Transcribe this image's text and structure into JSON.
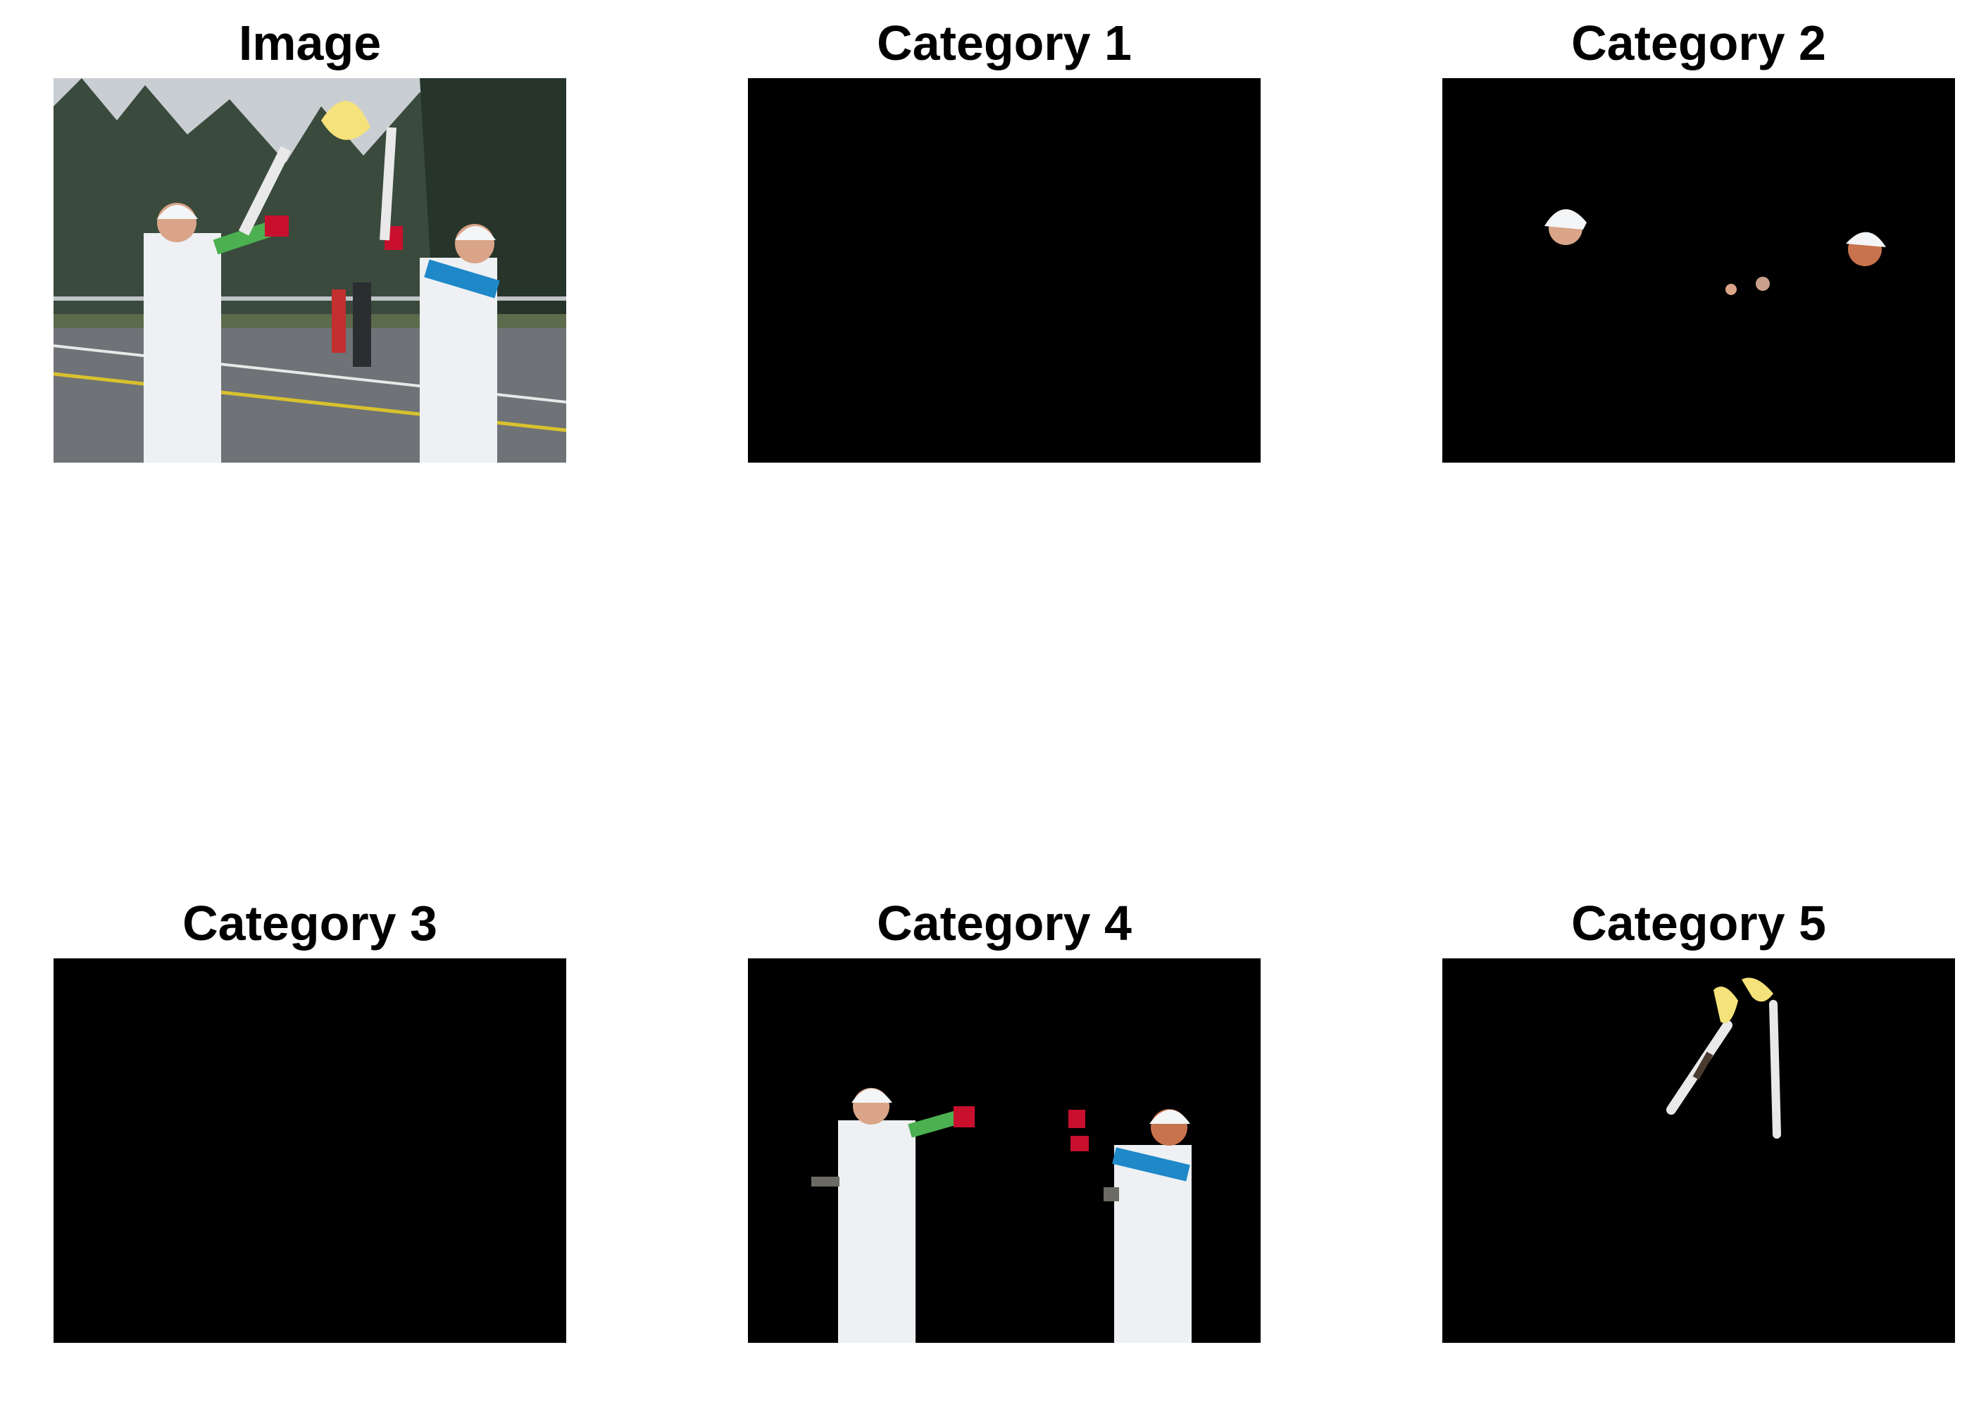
{
  "panels": [
    {
      "title": "Image"
    },
    {
      "title": "Category 1"
    },
    {
      "title": "Category 2"
    },
    {
      "title": "Category 3"
    },
    {
      "title": "Category 4"
    },
    {
      "title": "Category 5"
    }
  ],
  "colors": {
    "background": "#ffffff",
    "mask_background": "#000000",
    "suit_white": "#eef0f3",
    "glove_red": "#c8102e",
    "sleeve_green": "#4caf50",
    "sleeve_blue": "#1e88c8",
    "skin": "#d9a488",
    "flame": "#f5e27a"
  }
}
